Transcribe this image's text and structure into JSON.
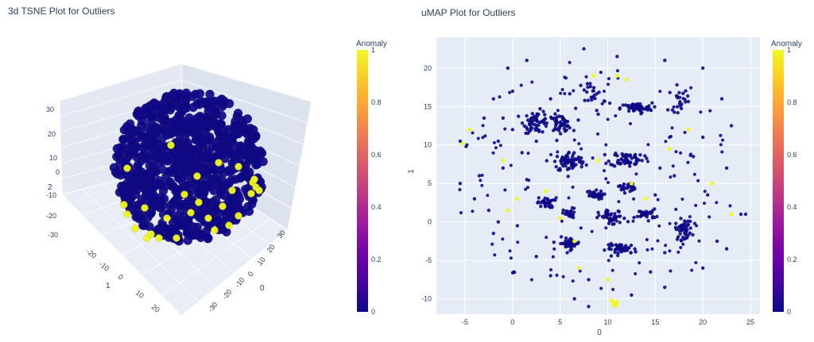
{
  "chart_data": [
    {
      "type": "scatter",
      "title": "3d TSNE Plot for Outliers",
      "projection": "3d",
      "axis_labels": {
        "x": "1",
        "y": "0",
        "z": "2"
      },
      "axes": {
        "x_ticks": [
          "-20",
          "-10",
          "0",
          "10",
          "20"
        ],
        "y_ticks": [
          "30",
          "20",
          "10",
          "0",
          "-10",
          "-20",
          "-30"
        ],
        "z_ticks": [
          "30",
          "20",
          "10",
          "0",
          "-10",
          "-20",
          "-30"
        ]
      },
      "color_by": "Anomaly",
      "colorbar": {
        "title": "Anomaly",
        "ticks": [
          "1",
          "0.8",
          "0.6",
          "0.4",
          "0.2",
          "0"
        ],
        "range": [
          0,
          1
        ],
        "colorscale": "plasma"
      }
    },
    {
      "type": "scatter",
      "title": "uMAP Plot for Outliers",
      "xlabel": "0",
      "ylabel": "1",
      "xlim": [
        -8,
        26
      ],
      "ylim": [
        -12,
        24
      ],
      "x_ticks": [
        -5,
        0,
        5,
        10,
        15,
        20,
        25
      ],
      "y_ticks": [
        -10,
        -5,
        0,
        5,
        10,
        15,
        20
      ],
      "grid": true,
      "color_by": "Anomaly",
      "clusters": [
        {
          "x": 2.5,
          "y": 13.0,
          "spread": [
            1.2,
            1.3
          ],
          "n": 60,
          "anomaly": 0
        },
        {
          "x": 5.0,
          "y": 12.8,
          "spread": [
            1.1,
            1.0
          ],
          "n": 50,
          "anomaly": 0
        },
        {
          "x": 13.0,
          "y": 14.8,
          "spread": [
            1.5,
            0.6
          ],
          "n": 60,
          "anomaly": 0
        },
        {
          "x": 6.0,
          "y": 7.8,
          "spread": [
            1.5,
            1.2
          ],
          "n": 70,
          "anomaly": 0
        },
        {
          "x": 12.0,
          "y": 8.2,
          "spread": [
            1.6,
            0.9
          ],
          "n": 60,
          "anomaly": 0
        },
        {
          "x": 8.5,
          "y": 3.5,
          "spread": [
            0.9,
            0.5
          ],
          "n": 30,
          "anomaly": 0
        },
        {
          "x": 3.5,
          "y": 2.5,
          "spread": [
            0.8,
            0.6
          ],
          "n": 30,
          "anomaly": 0
        },
        {
          "x": 12.0,
          "y": 4.5,
          "spread": [
            0.8,
            0.6
          ],
          "n": 25,
          "anomaly": 0
        },
        {
          "x": 6.0,
          "y": 1.0,
          "spread": [
            0.6,
            0.7
          ],
          "n": 25,
          "anomaly": 0
        },
        {
          "x": 10.5,
          "y": 0.5,
          "spread": [
            1.3,
            0.9
          ],
          "n": 40,
          "anomaly": 0
        },
        {
          "x": 14.0,
          "y": 1.0,
          "spread": [
            1.0,
            0.6
          ],
          "n": 30,
          "anomaly": 0
        },
        {
          "x": 18.0,
          "y": -1.0,
          "spread": [
            0.8,
            1.2
          ],
          "n": 50,
          "anomaly": 0
        },
        {
          "x": 6.0,
          "y": -2.8,
          "spread": [
            1.0,
            0.7
          ],
          "n": 40,
          "anomaly": 0
        },
        {
          "x": 11.5,
          "y": -3.5,
          "spread": [
            1.5,
            0.6
          ],
          "n": 45,
          "anomaly": 0
        },
        {
          "x": 8.5,
          "y": 16.5,
          "spread": [
            1.2,
            1.8
          ],
          "n": 25,
          "anomaly": 0
        },
        {
          "x": 17.5,
          "y": 16.0,
          "spread": [
            1.0,
            1.5
          ],
          "n": 20,
          "anomaly": 0
        }
      ],
      "scattered_points": [
        [
          -0.5,
          20.0,
          0
        ],
        [
          1.5,
          21.0,
          0
        ],
        [
          7.5,
          22.5,
          0
        ],
        [
          11.0,
          21.5,
          0
        ],
        [
          16.0,
          21.0,
          0
        ],
        [
          20.0,
          20.0,
          0
        ],
        [
          -2.0,
          16.0,
          0
        ],
        [
          0.0,
          17.0,
          0
        ],
        [
          22.0,
          16.0,
          0
        ],
        [
          -5.5,
          10.5,
          0
        ],
        [
          -3.0,
          13.5,
          0
        ],
        [
          1.0,
          9.0,
          0
        ],
        [
          2.5,
          10.5,
          0
        ],
        [
          16.5,
          11.0,
          0
        ],
        [
          20.0,
          11.0,
          0
        ],
        [
          23.0,
          12.5,
          0
        ],
        [
          -1.0,
          7.0,
          0
        ],
        [
          -3.5,
          6.0,
          0
        ],
        [
          1.5,
          5.5,
          0
        ],
        [
          15.5,
          7.0,
          0
        ],
        [
          19.0,
          8.5,
          0
        ],
        [
          22.5,
          7.0,
          0
        ],
        [
          -5.5,
          5.0,
          0
        ],
        [
          -4.0,
          3.0,
          0
        ],
        [
          -2.5,
          1.5,
          0
        ],
        [
          15.0,
          3.5,
          0
        ],
        [
          20.5,
          3.5,
          0
        ],
        [
          24.0,
          1.0,
          0
        ],
        [
          -1.5,
          0.0,
          0
        ],
        [
          0.5,
          -0.5,
          0
        ],
        [
          -2.0,
          -1.5,
          0
        ],
        [
          21.5,
          -2.5,
          0
        ],
        [
          2.5,
          -4.5,
          0
        ],
        [
          16.0,
          -4.0,
          0
        ],
        [
          20.0,
          -6.0,
          0
        ],
        [
          4.0,
          -7.0,
          0
        ],
        [
          8.0,
          -7.5,
          0
        ],
        [
          14.5,
          -6.5,
          0
        ],
        [
          6.5,
          -10.0,
          0
        ],
        [
          12.5,
          -9.5,
          0
        ],
        [
          16.0,
          -8.5,
          0
        ],
        [
          8.0,
          -11.0,
          0
        ],
        [
          -1.5,
          10.5,
          0
        ],
        [
          4.0,
          16.0,
          0
        ],
        [
          24.5,
          1.0,
          0
        ],
        [
          22.5,
          -3.5,
          0
        ],
        [
          0.0,
          12.0,
          0
        ],
        [
          -1.0,
          13.5,
          0
        ],
        [
          9.0,
          14.0,
          0
        ],
        [
          17.0,
          6.0,
          0
        ],
        [
          10.6,
          -10.5,
          1
        ],
        [
          10.9,
          -10.8,
          1
        ],
        [
          10.4,
          -10.2,
          1
        ],
        [
          11.0,
          -10.4,
          1
        ],
        [
          10.7,
          -10.9,
          1
        ],
        [
          -4.5,
          12.0,
          1
        ],
        [
          -5.2,
          10.2,
          1
        ],
        [
          0.5,
          3.0,
          1
        ],
        [
          -0.5,
          1.5,
          1
        ],
        [
          7.0,
          -6.0,
          1
        ],
        [
          6.5,
          -2.5,
          1
        ],
        [
          10.0,
          -7.5,
          1
        ],
        [
          11.0,
          19.0,
          1
        ],
        [
          12.0,
          18.5,
          1
        ],
        [
          21.0,
          5.0,
          1
        ],
        [
          18.5,
          12.0,
          1
        ],
        [
          9.0,
          8.0,
          1
        ],
        [
          14.0,
          3.0,
          1
        ],
        [
          5.0,
          0.5,
          1
        ],
        [
          23.0,
          1.0,
          1
        ],
        [
          8.5,
          19.0,
          1
        ],
        [
          16.5,
          9.5,
          1
        ],
        [
          12.5,
          5.0,
          1
        ],
        [
          3.5,
          4.0,
          1
        ],
        [
          -1.0,
          8.0,
          1
        ]
      ],
      "colorbar": {
        "title": "Anomaly",
        "ticks": [
          "1",
          "0.8",
          "0.6",
          "0.4",
          "0.2",
          "0"
        ],
        "range": [
          0,
          1
        ],
        "colorscale": "plasma"
      }
    }
  ]
}
